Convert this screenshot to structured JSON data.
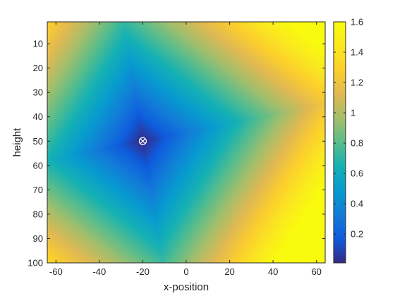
{
  "chart_data": {
    "type": "heatmap",
    "title": "",
    "xlabel": "x-position",
    "ylabel": "height",
    "xlim": [
      -64,
      64
    ],
    "ylim": [
      1,
      100
    ],
    "y_direction": "reversed",
    "x_ticks": [
      "-60",
      "-40",
      "-20",
      "0",
      "20",
      "40",
      "60"
    ],
    "y_ticks": [
      "10",
      "20",
      "30",
      "40",
      "50",
      "60",
      "70",
      "80",
      "90",
      "100"
    ],
    "colormap": "parula",
    "colorbar": {
      "range": [
        0.01,
        1.6
      ],
      "ticks": [
        "0.2",
        "0.4",
        "0.6",
        "0.8",
        "1",
        "1.2",
        "1.4",
        "1.6"
      ]
    },
    "field": {
      "description_source": "L1-type distance from marked source point on a rotated grid",
      "source": {
        "x": -20,
        "y": 50
      },
      "min_value": 0.01,
      "max_value": 1.6
    },
    "marker": {
      "symbol": "circle-cross",
      "x": -20,
      "y": 50,
      "color": "#ffffff"
    },
    "grid": false
  }
}
